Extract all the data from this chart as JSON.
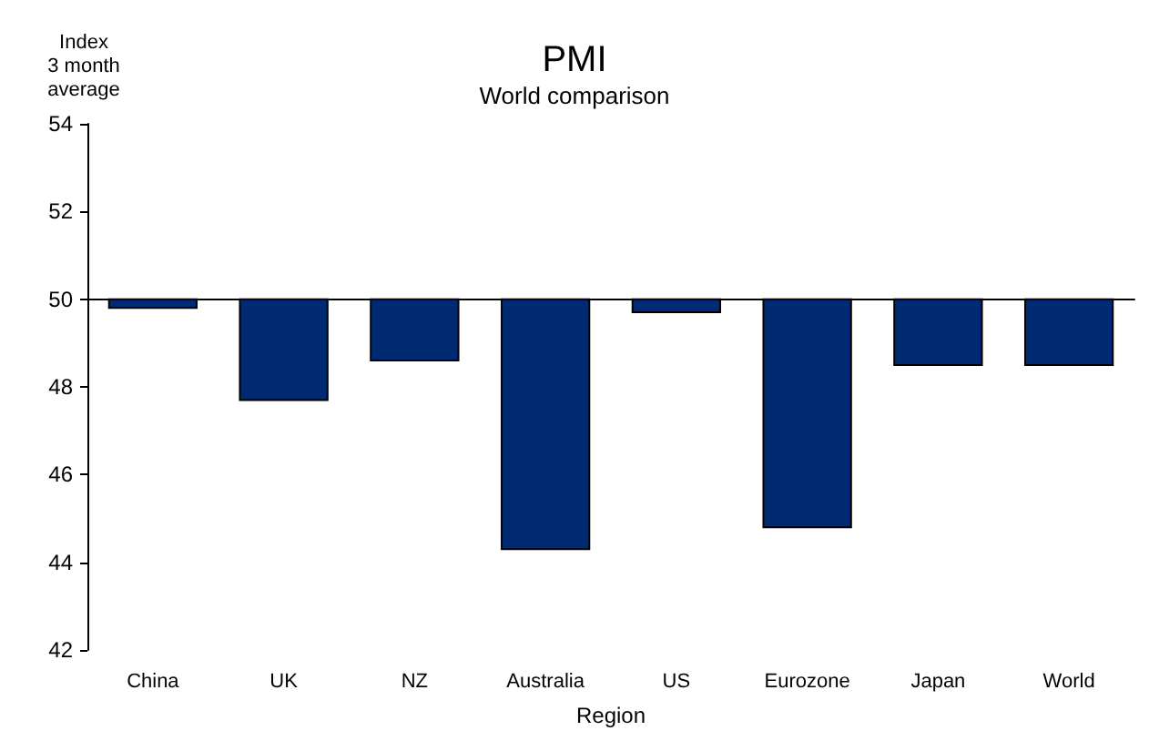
{
  "chart_data": {
    "type": "bar",
    "title": "PMI",
    "subtitle": "World comparison",
    "xlabel": "Region",
    "ylabel": "Index\n3 month\naverage",
    "categories": [
      "China",
      "UK",
      "NZ",
      "Australia",
      "US",
      "Eurozone",
      "Japan",
      "World"
    ],
    "base": [
      50,
      50,
      50,
      50,
      50,
      50,
      50,
      50
    ],
    "values": [
      -0.2,
      -2.3,
      -1.4,
      -5.7,
      -0.3,
      -5.2,
      -1.5,
      -1.5
    ],
    "color": "#002b73",
    "ylim": [
      42,
      54
    ],
    "yticks": [
      42,
      44,
      46,
      48,
      50,
      52,
      54
    ]
  }
}
